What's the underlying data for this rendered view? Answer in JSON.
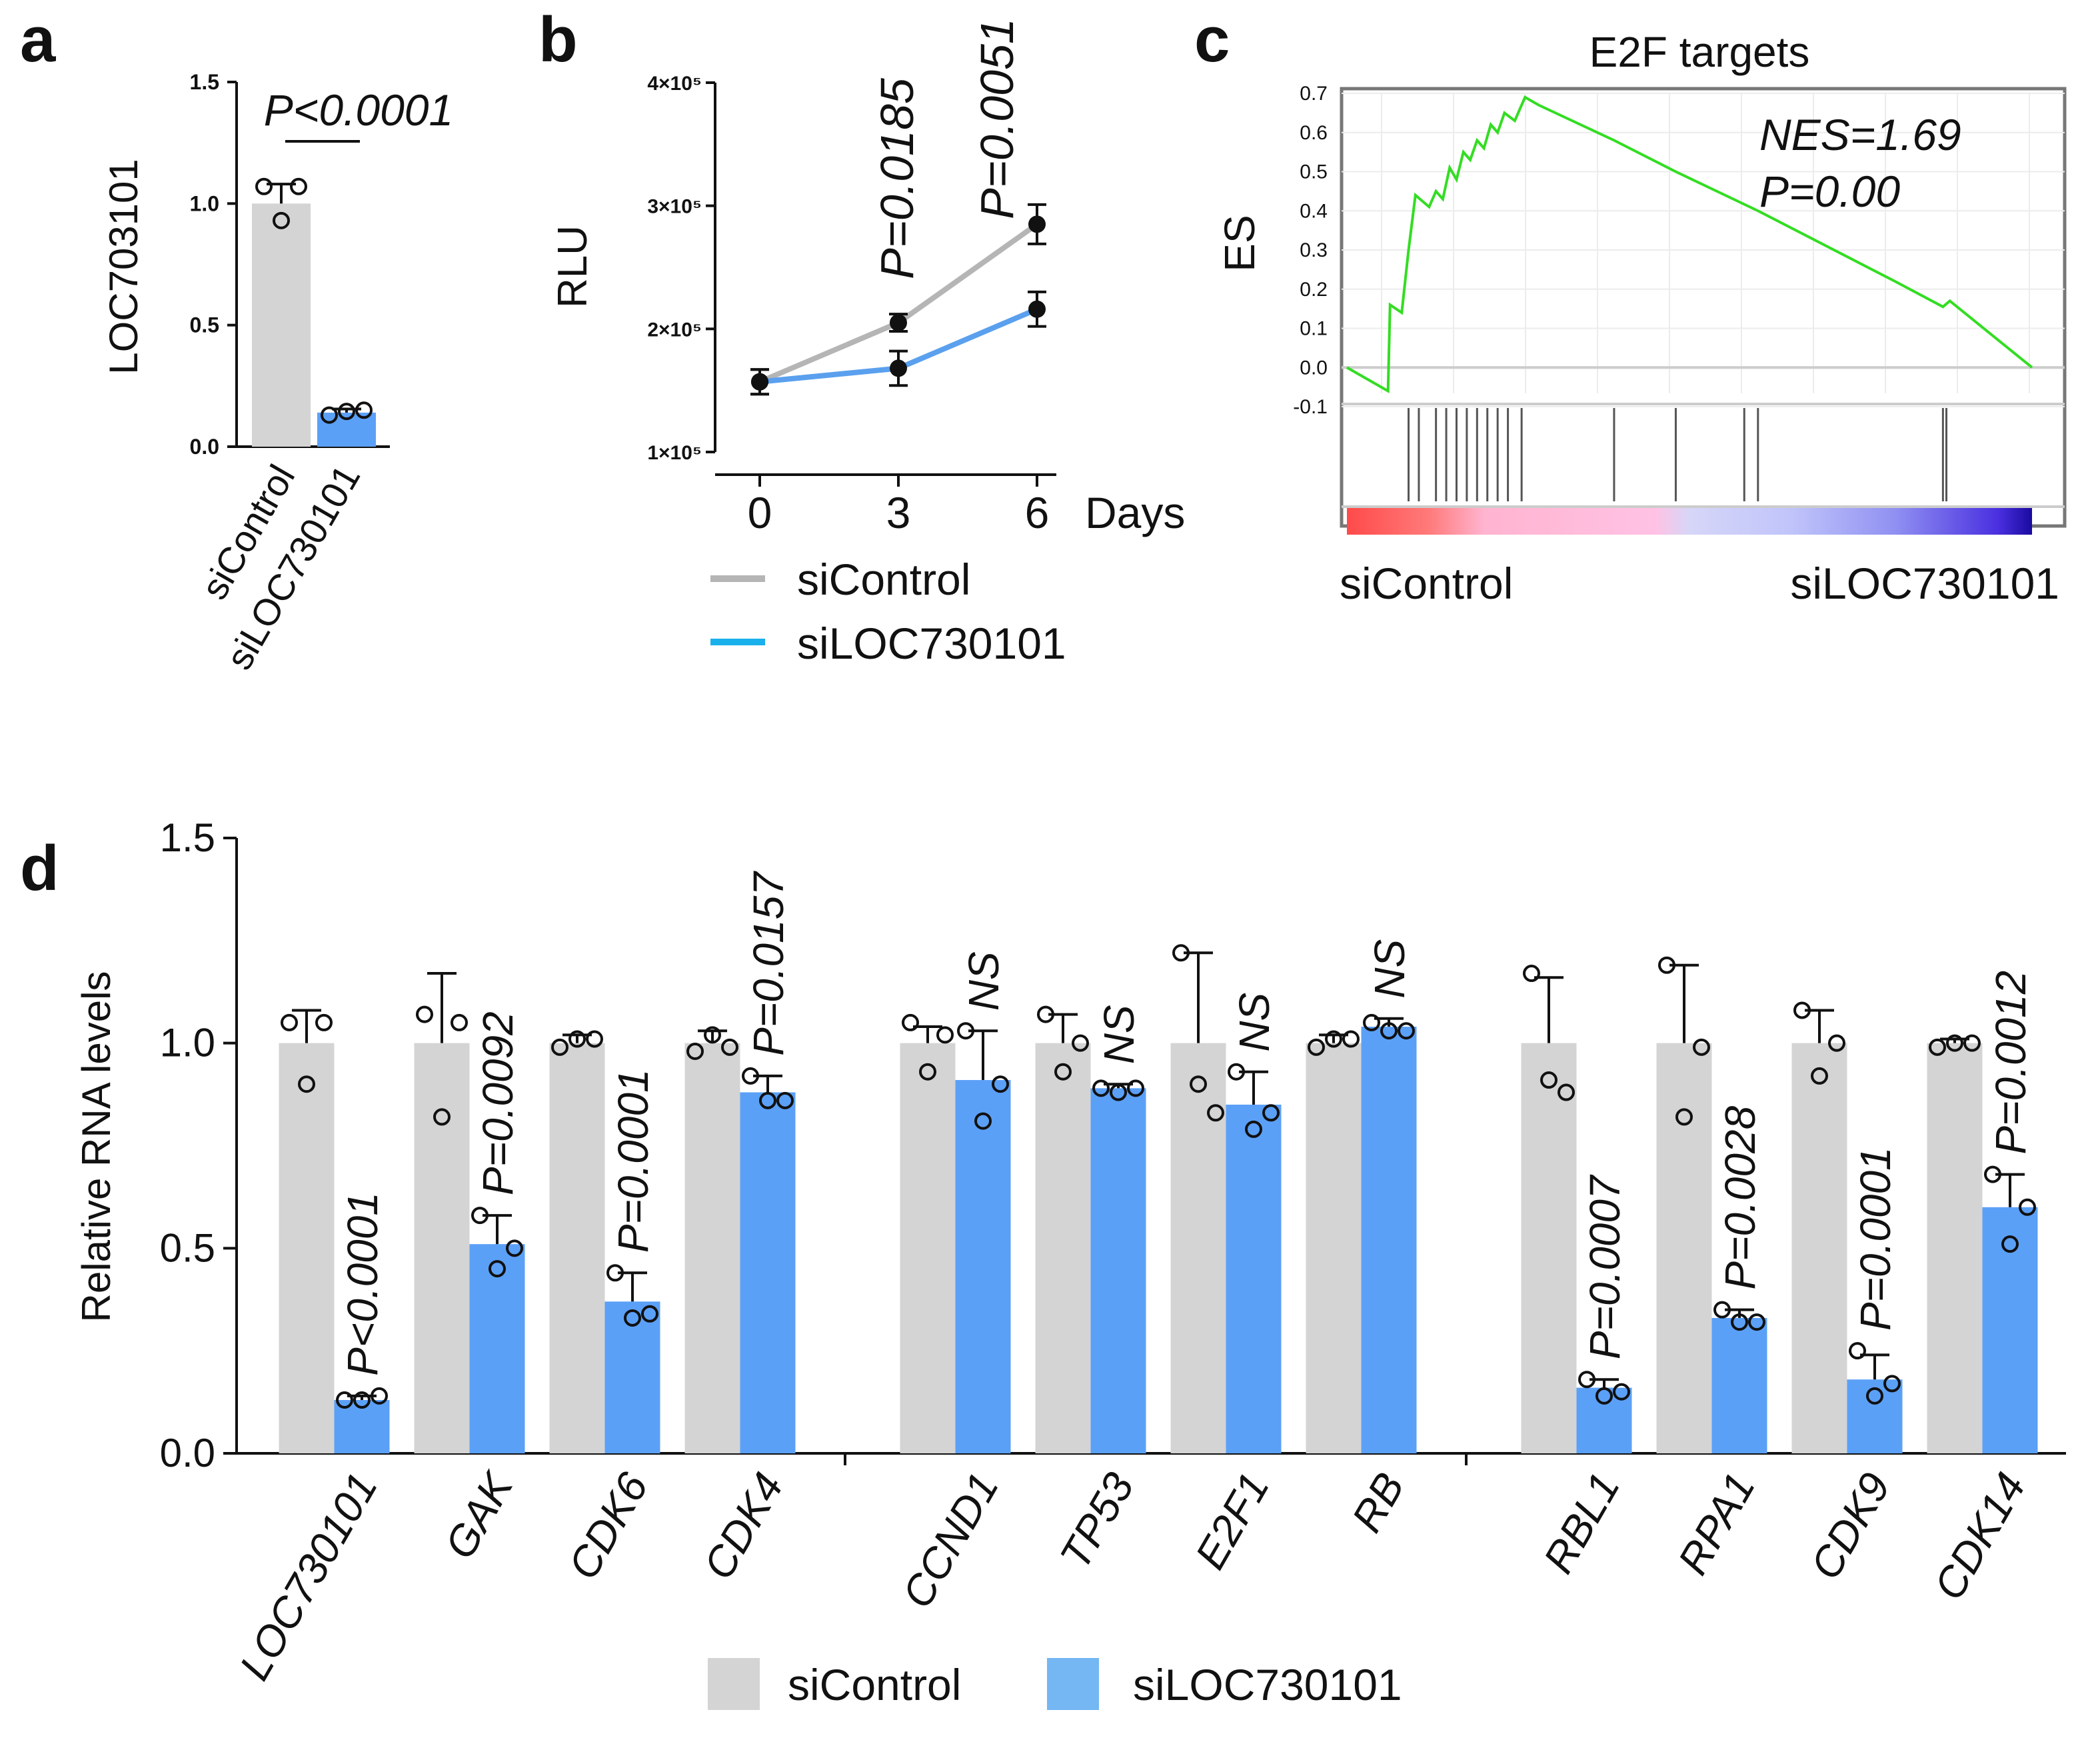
{
  "colors": {
    "control": "#d4d4d4",
    "knockdown": "#5ba0f7",
    "control_line": "#b5b5b5",
    "knockdown_line": "#5aa0ee",
    "legend_knockdown_line": "#1ab0ec",
    "legend_knockdown_box": "#74b7f3",
    "gsea_curve": "#33dd22",
    "axis": "#111111"
  },
  "chart_data": [
    {
      "id": "a",
      "panel_label": "a",
      "type": "bar",
      "categories": [
        "siControl",
        "siLOC730101"
      ],
      "values": [
        1.0,
        0.14
      ],
      "errors": [
        0.08,
        0.015
      ],
      "points": [
        [
          1.07,
          0.93,
          1.07
        ],
        [
          0.13,
          0.145,
          0.15
        ]
      ],
      "ylabel": "LOC703101",
      "ylim": [
        0,
        1.5
      ],
      "yticks": [
        "0.0",
        "0.5",
        "1.0",
        "1.5"
      ],
      "annotation": "P<0.0001"
    },
    {
      "id": "b",
      "panel_label": "b",
      "type": "line",
      "x": [
        0,
        3,
        6
      ],
      "xticks": [
        "0",
        "3",
        "6"
      ],
      "xlabel": "Days",
      "ylabel": "RLU",
      "yticks": [
        "1×10⁵",
        "2×10⁵",
        "3×10⁵",
        "4×10⁵"
      ],
      "ylim": [
        100000,
        400000
      ],
      "series": [
        {
          "name": "siControl",
          "values": [
            157000,
            205000,
            285000
          ],
          "errors": [
            10000,
            7000,
            16000
          ]
        },
        {
          "name": "siLOC730101",
          "values": [
            157000,
            168000,
            216000
          ],
          "errors": [
            10000,
            14000,
            14000
          ]
        }
      ],
      "annotations": [
        "P=0.0185",
        "P=0.0051"
      ],
      "legend": [
        "siControl",
        "siLOC730101"
      ]
    },
    {
      "id": "c",
      "panel_label": "c",
      "type": "line",
      "title": "E2F targets",
      "ylabel": "ES",
      "yticks": [
        "0.7",
        "0.6",
        "0.5",
        "0.4",
        "0.3",
        "0.2",
        "0.1",
        "0.0",
        "-0.1"
      ],
      "ylim": [
        -0.1,
        0.7
      ],
      "nes_text": "NES=1.69",
      "p_text": "P=0.00",
      "left_label": "siControl",
      "right_label": "siLOC730101",
      "es_curve": [
        [
          0.0,
          0.0
        ],
        [
          0.06,
          -0.06
        ],
        [
          0.063,
          0.16
        ],
        [
          0.08,
          0.14
        ],
        [
          0.09,
          0.3
        ],
        [
          0.1,
          0.44
        ],
        [
          0.12,
          0.41
        ],
        [
          0.13,
          0.45
        ],
        [
          0.14,
          0.43
        ],
        [
          0.15,
          0.51
        ],
        [
          0.16,
          0.48
        ],
        [
          0.17,
          0.55
        ],
        [
          0.18,
          0.53
        ],
        [
          0.19,
          0.58
        ],
        [
          0.2,
          0.56
        ],
        [
          0.21,
          0.62
        ],
        [
          0.22,
          0.6
        ],
        [
          0.23,
          0.65
        ],
        [
          0.245,
          0.63
        ],
        [
          0.26,
          0.69
        ],
        [
          0.28,
          0.67
        ],
        [
          0.39,
          0.58
        ],
        [
          0.48,
          0.5
        ],
        [
          0.6,
          0.4
        ],
        [
          0.8,
          0.22
        ],
        [
          0.87,
          0.155
        ],
        [
          0.88,
          0.17
        ],
        [
          1.0,
          0.0
        ]
      ],
      "hit_positions": [
        0.09,
        0.105,
        0.13,
        0.145,
        0.16,
        0.175,
        0.19,
        0.205,
        0.22,
        0.235,
        0.255,
        0.39,
        0.48,
        0.58,
        0.6,
        0.87,
        0.875
      ]
    },
    {
      "id": "d",
      "panel_label": "d",
      "type": "bar",
      "ylabel": "Relative RNA levels",
      "ylim": [
        0,
        1.5
      ],
      "yticks": [
        "0.0",
        "0.5",
        "1.0",
        "1.5"
      ],
      "categories": [
        "LOC730101",
        "GAK",
        "CDK6",
        "CDK4",
        "CCND1",
        "TP53",
        "E2F1",
        "RB",
        "RBL1",
        "RPA1",
        "CDK9",
        "CDK14"
      ],
      "groups": [
        [
          0,
          1,
          2,
          3
        ],
        [
          4,
          5,
          6,
          7
        ],
        [
          8,
          9,
          10,
          11
        ]
      ],
      "series": [
        {
          "name": "siControl",
          "values": [
            1.0,
            1.0,
            1.0,
            1.0,
            1.0,
            1.0,
            1.0,
            1.0,
            1.0,
            1.0,
            1.0,
            1.0
          ],
          "errors": [
            0.08,
            0.17,
            0.02,
            0.03,
            0.04,
            0.07,
            0.22,
            0.02,
            0.16,
            0.19,
            0.08,
            0.01
          ],
          "points": [
            [
              1.05,
              0.9,
              1.05
            ],
            [
              1.07,
              0.82,
              1.05
            ],
            [
              0.99,
              1.01,
              1.01
            ],
            [
              0.98,
              1.02,
              0.99
            ],
            [
              1.05,
              0.93,
              1.02
            ],
            [
              1.07,
              0.93,
              1.0
            ],
            [
              1.22,
              0.9,
              0.83
            ],
            [
              0.99,
              1.01,
              1.01
            ],
            [
              1.17,
              0.91,
              0.88
            ],
            [
              1.19,
              0.82,
              0.99
            ],
            [
              1.08,
              0.92,
              1.0
            ],
            [
              0.99,
              1.0,
              1.0
            ]
          ]
        },
        {
          "name": "siLOC730101",
          "values": [
            0.13,
            0.51,
            0.37,
            0.88,
            0.91,
            0.89,
            0.85,
            1.04,
            0.16,
            0.33,
            0.18,
            0.6
          ],
          "errors": [
            0.01,
            0.07,
            0.07,
            0.04,
            0.12,
            0.01,
            0.08,
            0.02,
            0.02,
            0.02,
            0.06,
            0.08
          ],
          "points": [
            [
              0.13,
              0.13,
              0.14
            ],
            [
              0.58,
              0.45,
              0.5
            ],
            [
              0.44,
              0.33,
              0.34
            ],
            [
              0.92,
              0.86,
              0.86
            ],
            [
              1.03,
              0.81,
              0.9
            ],
            [
              0.89,
              0.88,
              0.89
            ],
            [
              0.93,
              0.79,
              0.83
            ],
            [
              1.05,
              1.03,
              1.03
            ],
            [
              0.18,
              0.14,
              0.15
            ],
            [
              0.35,
              0.32,
              0.32
            ],
            [
              0.25,
              0.14,
              0.17
            ],
            [
              0.68,
              0.51,
              0.6
            ]
          ]
        }
      ],
      "annotations": [
        "P<0.0001",
        "P=0.0092",
        "P=0.0001",
        "P=0.0157",
        "NS",
        "NS",
        "NS",
        "NS",
        "P=0.0007",
        "P=0.0028",
        "P=0.0001",
        "P=0.0012"
      ],
      "legend": [
        "siControl",
        "siLOC730101"
      ]
    }
  ]
}
